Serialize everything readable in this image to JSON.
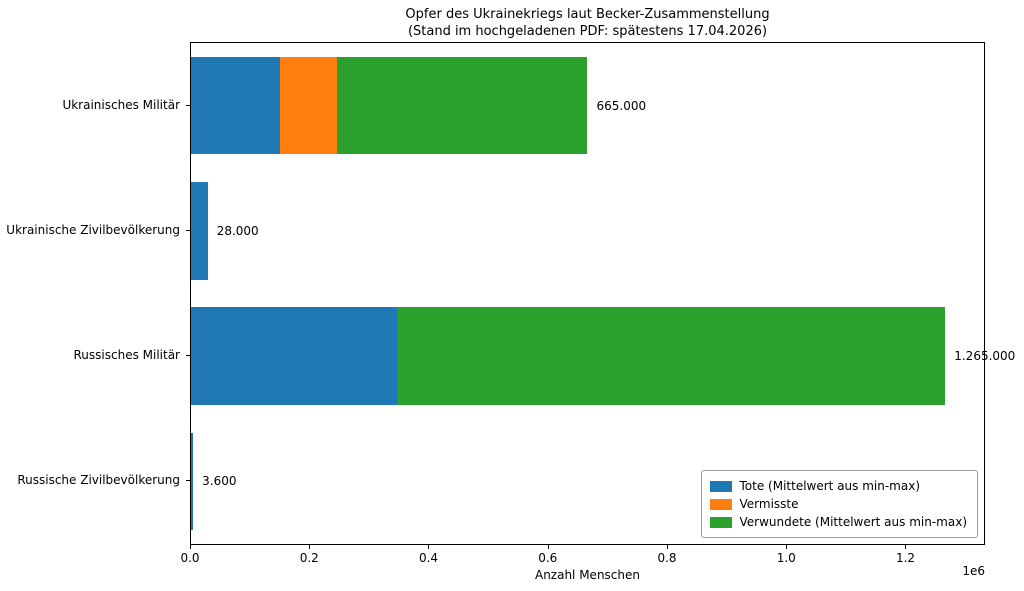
{
  "title": {
    "line1": "Opfer des Ukrainekriegs laut Becker-Zusammenstellung",
    "line2": "(Stand im hochgeladenen PDF: spätestens 17.04.2026)"
  },
  "chart_data": {
    "type": "bar",
    "orientation": "horizontal",
    "stacked": true,
    "categories": [
      "Ukrainisches Militär",
      "Ukrainische Zivilbevölkerung",
      "Russisches Militär",
      "Russische Zivilbevölkerung"
    ],
    "series": [
      {
        "name": "Tote (Mittelwert aus min-max)",
        "color": "#1f77b4",
        "values": [
          150000,
          28000,
          345000,
          3600
        ]
      },
      {
        "name": "Vermisste",
        "color": "#ff7f0e",
        "values": [
          95000,
          0,
          0,
          0
        ]
      },
      {
        "name": "Verwundete (Mittelwert aus min-max)",
        "color": "#2ca02c",
        "values": [
          420000,
          0,
          920000,
          0
        ]
      }
    ],
    "totals": [
      665000,
      28000,
      1265000,
      3600
    ],
    "totals_labels": [
      "665.000",
      "28.000",
      "1.265.000",
      "3.600"
    ],
    "xlabel": "Anzahl Menschen",
    "xlim": [
      0,
      1330000
    ],
    "xticks": [
      0,
      200000,
      400000,
      600000,
      800000,
      1000000,
      1200000
    ],
    "xtick_labels": [
      "0.0",
      "0.2",
      "0.4",
      "0.6",
      "0.8",
      "1.0",
      "1.2"
    ],
    "offset_text": "1e6",
    "legend_position": "lower right",
    "grid": false,
    "bar_height_fraction": 0.78
  }
}
